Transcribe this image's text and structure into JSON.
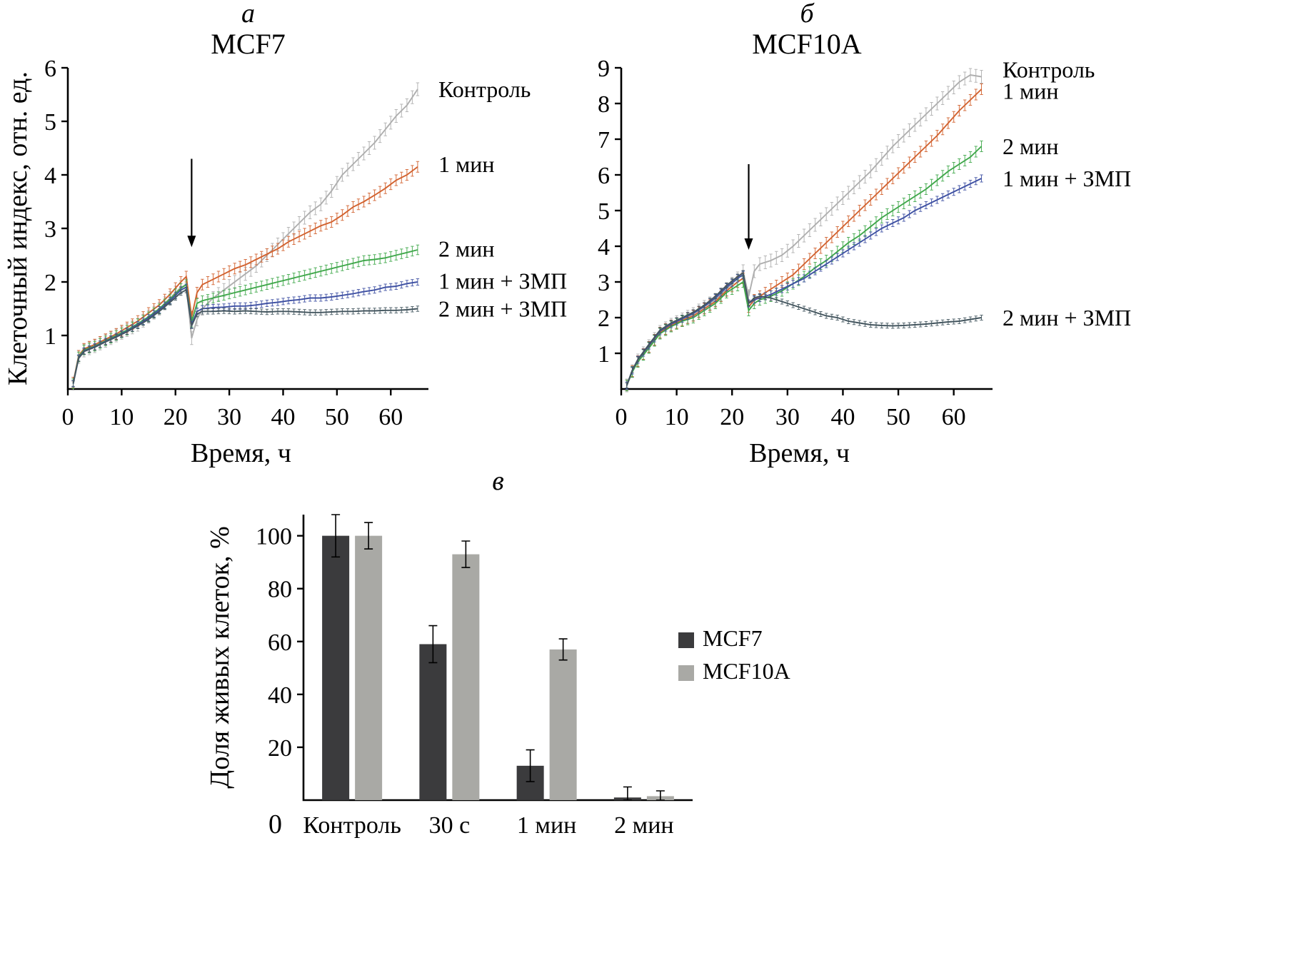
{
  "figure": {
    "background": "#ffffff"
  },
  "chart_data": [
    {
      "type": "line",
      "panel_label": "а",
      "title": "MCF7",
      "xlabel": "Время, ч",
      "ylabel": "Клеточный индекс, отн. ед.",
      "xlim": [
        0,
        67
      ],
      "ylim": [
        0,
        6
      ],
      "xticks": [
        0,
        10,
        20,
        30,
        40,
        50,
        60
      ],
      "yticks": [
        1,
        2,
        3,
        4,
        5,
        6
      ],
      "arrow": {
        "x": 23,
        "y_from": 4.3,
        "y_to": 2.65
      },
      "x": [
        1,
        2,
        3,
        5,
        7,
        9,
        11,
        13,
        15,
        17,
        19,
        21,
        22,
        23,
        24,
        25,
        27,
        29,
        31,
        33,
        35,
        37,
        39,
        41,
        43,
        45,
        47,
        49,
        51,
        53,
        55,
        57,
        59,
        61,
        63,
        65
      ],
      "series": [
        {
          "name": "Контроль",
          "color": "#aeaeae",
          "err": 0.12,
          "label_y": 5.6,
          "y": [
            0.1,
            0.6,
            0.72,
            0.8,
            0.9,
            1.0,
            1.1,
            1.2,
            1.35,
            1.5,
            1.7,
            1.9,
            1.95,
            0.95,
            1.3,
            1.5,
            1.7,
            1.85,
            2.0,
            2.15,
            2.3,
            2.5,
            2.7,
            2.9,
            3.1,
            3.3,
            3.45,
            3.7,
            4.0,
            4.2,
            4.4,
            4.6,
            4.85,
            5.1,
            5.3,
            5.6
          ]
        },
        {
          "name": "1 мин",
          "color": "#d2622f",
          "err": 0.1,
          "label_y": 4.2,
          "y": [
            0.12,
            0.62,
            0.75,
            0.83,
            0.93,
            1.03,
            1.15,
            1.27,
            1.42,
            1.57,
            1.77,
            2.0,
            2.1,
            1.35,
            1.8,
            1.95,
            2.05,
            2.15,
            2.25,
            2.32,
            2.42,
            2.52,
            2.62,
            2.75,
            2.85,
            2.95,
            3.05,
            3.12,
            3.25,
            3.4,
            3.5,
            3.62,
            3.75,
            3.9,
            4.0,
            4.15
          ]
        },
        {
          "name": "2 мин",
          "color": "#3fa74a",
          "err": 0.09,
          "label_y": 2.62,
          "y": [
            0.1,
            0.6,
            0.73,
            0.8,
            0.9,
            1.0,
            1.1,
            1.22,
            1.35,
            1.5,
            1.68,
            1.88,
            1.95,
            1.25,
            1.6,
            1.65,
            1.7,
            1.75,
            1.8,
            1.85,
            1.9,
            1.95,
            2.0,
            2.05,
            2.1,
            2.15,
            2.2,
            2.25,
            2.3,
            2.35,
            2.4,
            2.42,
            2.45,
            2.5,
            2.55,
            2.6
          ]
        },
        {
          "name": "1 мин + ЗМП",
          "color": "#3f51a3",
          "err": 0.06,
          "label_y": 2.02,
          "y": [
            0.1,
            0.58,
            0.71,
            0.79,
            0.89,
            0.98,
            1.08,
            1.2,
            1.33,
            1.48,
            1.65,
            1.85,
            1.9,
            1.2,
            1.45,
            1.5,
            1.52,
            1.53,
            1.55,
            1.55,
            1.57,
            1.6,
            1.62,
            1.65,
            1.67,
            1.7,
            1.7,
            1.72,
            1.75,
            1.78,
            1.82,
            1.85,
            1.9,
            1.92,
            1.97,
            2.0
          ]
        },
        {
          "name": "2 мин + ЗМП",
          "color": "#44565f",
          "err": 0.05,
          "label_y": 1.5,
          "y": [
            0.1,
            0.57,
            0.7,
            0.78,
            0.88,
            0.97,
            1.07,
            1.18,
            1.3,
            1.45,
            1.62,
            1.8,
            1.85,
            1.18,
            1.4,
            1.45,
            1.45,
            1.46,
            1.45,
            1.46,
            1.45,
            1.44,
            1.45,
            1.45,
            1.44,
            1.43,
            1.43,
            1.44,
            1.45,
            1.45,
            1.46,
            1.46,
            1.47,
            1.47,
            1.48,
            1.5
          ]
        }
      ]
    },
    {
      "type": "line",
      "panel_label": "б",
      "title": "MCF10A",
      "xlabel": "Время, ч",
      "xlim": [
        0,
        67
      ],
      "ylim": [
        0,
        9
      ],
      "xticks": [
        0,
        10,
        20,
        30,
        40,
        50,
        60
      ],
      "yticks": [
        1,
        2,
        3,
        4,
        5,
        6,
        7,
        8,
        9
      ],
      "arrow": {
        "x": 23,
        "y_from": 6.3,
        "y_to": 3.9
      },
      "x": [
        1,
        2,
        3,
        5,
        7,
        9,
        11,
        13,
        15,
        17,
        19,
        21,
        22,
        23,
        24,
        25,
        27,
        29,
        31,
        33,
        35,
        37,
        39,
        41,
        43,
        45,
        47,
        49,
        51,
        53,
        55,
        57,
        59,
        61,
        63,
        65
      ],
      "series": [
        {
          "name": "Контроль",
          "color": "#aeaeae",
          "err": 0.18,
          "label_y": 8.95,
          "y": [
            0.1,
            0.5,
            0.8,
            1.2,
            1.6,
            1.8,
            1.95,
            2.1,
            2.3,
            2.5,
            2.8,
            3.1,
            3.3,
            2.6,
            3.3,
            3.5,
            3.6,
            3.75,
            4.0,
            4.3,
            4.6,
            4.9,
            5.2,
            5.5,
            5.8,
            6.1,
            6.45,
            6.8,
            7.1,
            7.4,
            7.7,
            8.0,
            8.3,
            8.6,
            8.8,
            8.75
          ]
        },
        {
          "name": "1 мин",
          "color": "#d2622f",
          "err": 0.15,
          "label_y": 8.35,
          "y": [
            0.1,
            0.5,
            0.78,
            1.18,
            1.58,
            1.78,
            1.92,
            2.05,
            2.25,
            2.45,
            2.75,
            3.0,
            3.1,
            2.3,
            2.5,
            2.6,
            2.8,
            3.0,
            3.2,
            3.5,
            3.8,
            4.1,
            4.4,
            4.7,
            5.0,
            5.3,
            5.6,
            5.9,
            6.2,
            6.5,
            6.8,
            7.1,
            7.45,
            7.8,
            8.1,
            8.4
          ]
        },
        {
          "name": "2 мин",
          "color": "#3fa74a",
          "err": 0.15,
          "label_y": 6.8,
          "y": [
            0.1,
            0.48,
            0.76,
            1.15,
            1.55,
            1.75,
            1.9,
            2.0,
            2.2,
            2.4,
            2.7,
            2.9,
            3.0,
            2.2,
            2.4,
            2.5,
            2.6,
            2.75,
            2.95,
            3.15,
            3.4,
            3.6,
            3.85,
            4.1,
            4.3,
            4.55,
            4.8,
            5.0,
            5.2,
            5.4,
            5.6,
            5.85,
            6.1,
            6.3,
            6.5,
            6.8
          ]
        },
        {
          "name": "1 мин + ЗМП",
          "color": "#3f51a3",
          "err": 0.1,
          "label_y": 5.9,
          "y": [
            0.1,
            0.52,
            0.82,
            1.22,
            1.62,
            1.82,
            1.97,
            2.12,
            2.32,
            2.55,
            2.85,
            3.1,
            3.2,
            2.4,
            2.5,
            2.55,
            2.65,
            2.8,
            2.95,
            3.1,
            3.3,
            3.5,
            3.7,
            3.9,
            4.1,
            4.3,
            4.5,
            4.65,
            4.8,
            5.0,
            5.15,
            5.3,
            5.45,
            5.6,
            5.75,
            5.9
          ]
        },
        {
          "name": "2 мин + ЗМП",
          "color": "#44565f",
          "err": 0.07,
          "label_y": 2.0,
          "y": [
            0.1,
            0.53,
            0.83,
            1.25,
            1.65,
            1.85,
            2.0,
            2.15,
            2.35,
            2.6,
            2.9,
            3.15,
            3.25,
            2.4,
            2.55,
            2.6,
            2.55,
            2.45,
            2.35,
            2.25,
            2.15,
            2.05,
            2.0,
            1.9,
            1.85,
            1.8,
            1.78,
            1.77,
            1.78,
            1.8,
            1.82,
            1.85,
            1.88,
            1.9,
            1.95,
            2.0
          ]
        }
      ]
    },
    {
      "type": "bar",
      "panel_label": "в",
      "ylabel": "Доля живых клеток, %",
      "categories": [
        "Контроль",
        "30 с",
        "1 мин",
        "2 мин"
      ],
      "ylim": [
        0,
        108
      ],
      "yticks": [
        20,
        40,
        60,
        80,
        100
      ],
      "origin_label": "0",
      "series": [
        {
          "name": "MCF7",
          "color": "#3b3b3d",
          "values": [
            100,
            59,
            13,
            1
          ],
          "errors": [
            8,
            7,
            6,
            4
          ]
        },
        {
          "name": "MCF10A",
          "color": "#a9a9a5",
          "values": [
            100,
            93,
            57,
            1.5
          ],
          "errors": [
            5,
            5,
            4,
            2
          ]
        }
      ],
      "legend_position": "right"
    }
  ]
}
